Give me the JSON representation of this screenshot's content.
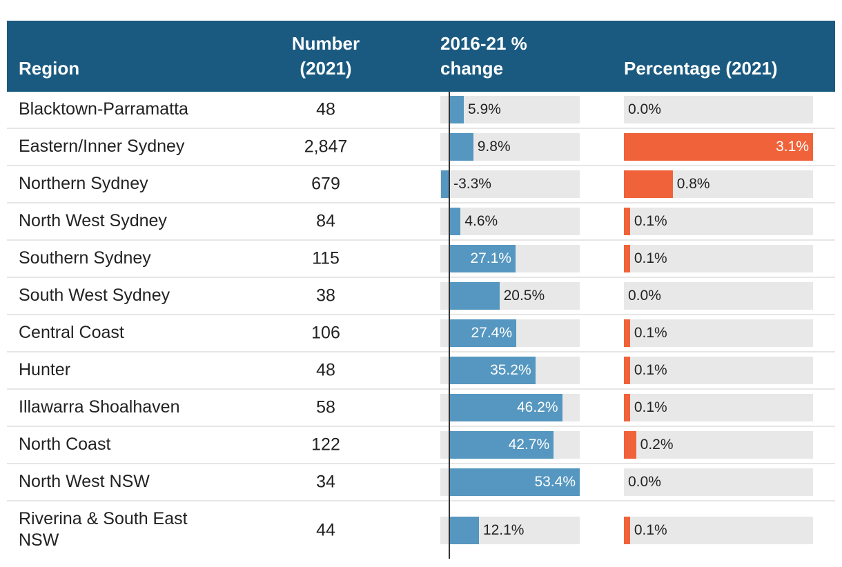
{
  "table": {
    "columns": [
      "Region",
      "Number (2021)",
      "2016-21 % change",
      "Percentage (2021)"
    ],
    "change_scale": [
      -3.7,
      53.4
    ],
    "share_scale": [
      0,
      3.1
    ],
    "change_color": "#5597c0",
    "share_color": "#f0633a",
    "rows": [
      {
        "region": "Blacktown-Parramatta",
        "number": "48",
        "change": 5.9,
        "change_label": "5.9%",
        "share": 0.0,
        "share_label": "0.0%"
      },
      {
        "region": "Eastern/Inner Sydney",
        "number": "2,847",
        "change": 9.8,
        "change_label": "9.8%",
        "share": 3.1,
        "share_label": "3.1%"
      },
      {
        "region": "Northern Sydney",
        "number": "679",
        "change": -3.3,
        "change_label": "-3.3%",
        "share": 0.8,
        "share_label": "0.8%"
      },
      {
        "region": "North West Sydney",
        "number": "84",
        "change": 4.6,
        "change_label": "4.6%",
        "share": 0.1,
        "share_label": "0.1%"
      },
      {
        "region": "Southern Sydney",
        "number": "115",
        "change": 27.1,
        "change_label": "27.1%",
        "share": 0.1,
        "share_label": "0.1%"
      },
      {
        "region": "South West Sydney",
        "number": "38",
        "change": 20.5,
        "change_label": "20.5%",
        "share": 0.0,
        "share_label": "0.0%"
      },
      {
        "region": "Central Coast",
        "number": "106",
        "change": 27.4,
        "change_label": "27.4%",
        "share": 0.1,
        "share_label": "0.1%"
      },
      {
        "region": "Hunter",
        "number": "48",
        "change": 35.2,
        "change_label": "35.2%",
        "share": 0.1,
        "share_label": "0.1%"
      },
      {
        "region": "Illawarra Shoalhaven",
        "number": "58",
        "change": 46.2,
        "change_label": "46.2%",
        "share": 0.1,
        "share_label": "0.1%"
      },
      {
        "region": "North Coast",
        "number": "122",
        "change": 42.7,
        "change_label": "42.7%",
        "share": 0.2,
        "share_label": "0.2%"
      },
      {
        "region": "North West NSW",
        "number": "34",
        "change": 53.4,
        "change_label": "53.4%",
        "share": 0.0,
        "share_label": "0.0%"
      },
      {
        "region": "Riverina & South East NSW",
        "number": "44",
        "change": 12.1,
        "change_label": "12.1%",
        "share": 0.1,
        "share_label": "0.1%"
      }
    ]
  }
}
